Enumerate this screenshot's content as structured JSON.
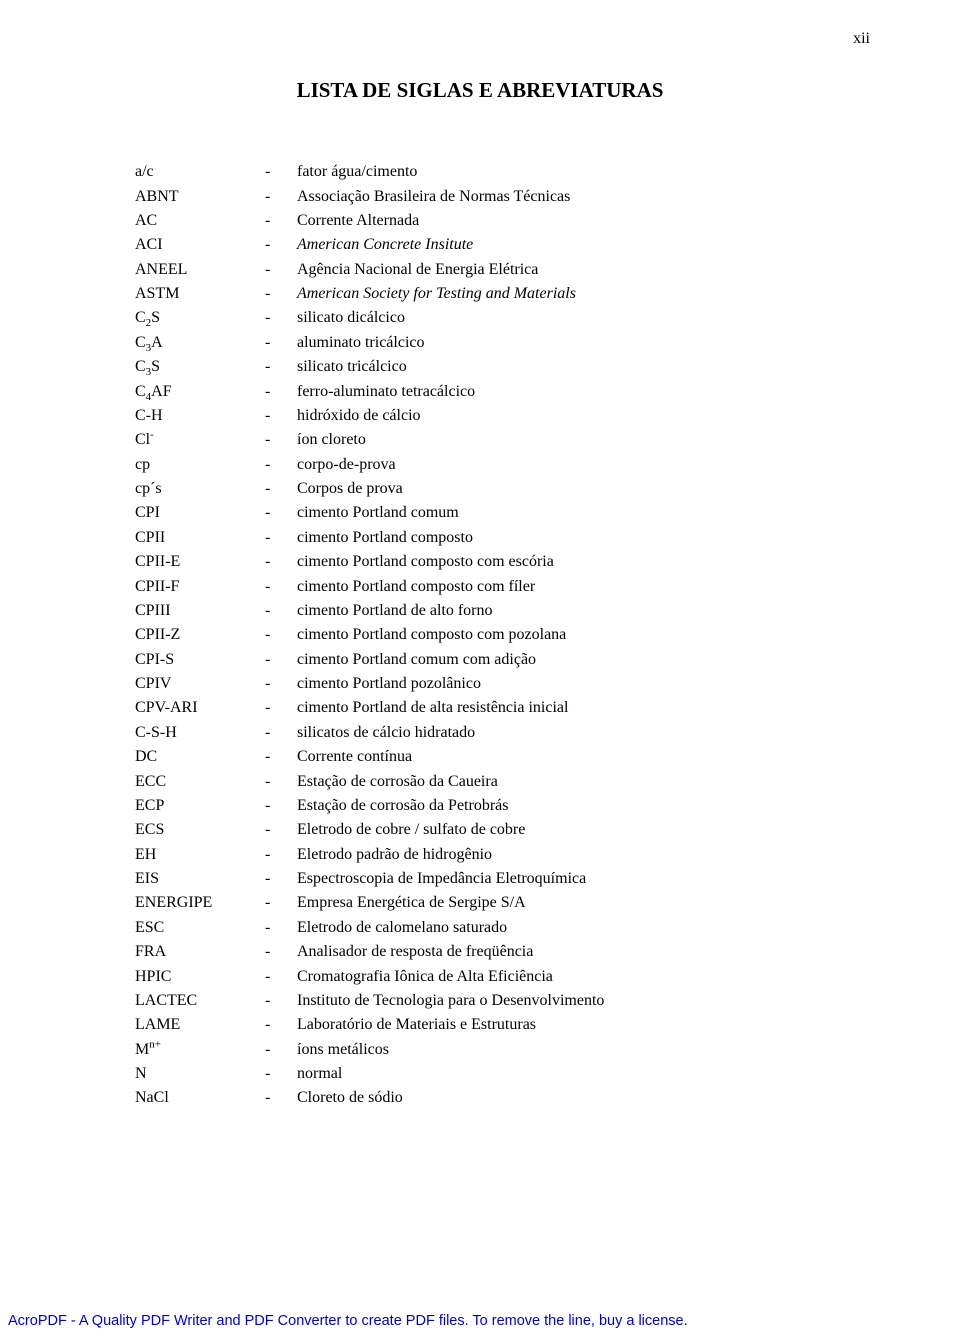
{
  "page_number": "xii",
  "title": "LISTA DE SIGLAS E ABREVIATURAS",
  "footer": "AcroPDF - A Quality PDF Writer and PDF Converter to create PDF files. To remove the line, buy a license.",
  "rows": [
    {
      "abbr_html": "a/c",
      "desc": "fator água/cimento"
    },
    {
      "abbr_html": "ABNT",
      "desc": "Associação Brasileira de Normas Técnicas"
    },
    {
      "abbr_html": "AC",
      "desc": "Corrente Alternada"
    },
    {
      "abbr_html": "ACI",
      "desc_html": "<span class=\"italic\">American Concrete Insitute</span>"
    },
    {
      "abbr_html": "ANEEL",
      "desc": "Agência Nacional de Energia Elétrica"
    },
    {
      "abbr_html": "ASTM",
      "desc_html": "<span class=\"italic\">American Society for Testing and Materials</span>"
    },
    {
      "abbr_html": "C<sub>2</sub>S",
      "desc": "silicato dicálcico"
    },
    {
      "abbr_html": "C<sub>3</sub>A",
      "desc": "aluminato tricálcico"
    },
    {
      "abbr_html": "C<sub>3</sub>S",
      "desc": "silicato tricálcico"
    },
    {
      "abbr_html": "C<sub>4</sub>AF",
      "desc": "ferro-aluminato tetracálcico"
    },
    {
      "abbr_html": "C-H",
      "desc": "hidróxido de cálcio"
    },
    {
      "abbr_html": "Cl<sup>-</sup>",
      "desc": "íon cloreto"
    },
    {
      "abbr_html": "cp",
      "desc": "corpo-de-prova"
    },
    {
      "abbr_html": "cp´s",
      "desc": "Corpos de prova"
    },
    {
      "abbr_html": "CPI",
      "desc": "cimento Portland comum"
    },
    {
      "abbr_html": "CPII",
      "desc": "cimento Portland composto"
    },
    {
      "abbr_html": "CPII-E",
      "desc": "cimento Portland composto com escória"
    },
    {
      "abbr_html": "CPII-F",
      "desc": "cimento Portland composto com fíler"
    },
    {
      "abbr_html": "CPIII",
      "desc": "cimento Portland de alto forno"
    },
    {
      "abbr_html": "CPII-Z",
      "desc": "cimento Portland composto com pozolana"
    },
    {
      "abbr_html": "CPI-S",
      "desc": "cimento Portland comum com adição"
    },
    {
      "abbr_html": "CPIV",
      "desc": "cimento Portland pozolânico"
    },
    {
      "abbr_html": "CPV-ARI",
      "desc": "cimento Portland de alta resistência inicial"
    },
    {
      "abbr_html": "C-S-H",
      "desc": "silicatos de cálcio hidratado"
    },
    {
      "abbr_html": "DC",
      "desc": "Corrente contínua"
    },
    {
      "abbr_html": "ECC",
      "desc": "Estação de corrosão da Caueira"
    },
    {
      "abbr_html": "ECP",
      "desc": "Estação de corrosão da Petrobrás"
    },
    {
      "abbr_html": "ECS",
      "desc": "Eletrodo de cobre / sulfato de cobre"
    },
    {
      "abbr_html": "EH",
      "desc": "Eletrodo padrão de hidrogênio"
    },
    {
      "abbr_html": "EIS",
      "desc": "Espectroscopia de Impedância Eletroquímica"
    },
    {
      "abbr_html": "ENERGIPE",
      "desc": "Empresa Energética de Sergipe S/A"
    },
    {
      "abbr_html": "ESC",
      "desc": "Eletrodo de calomelano saturado"
    },
    {
      "abbr_html": "FRA",
      "desc": "Analisador de resposta de freqüência"
    },
    {
      "abbr_html": "HPIC",
      "desc": "Cromatografia Iônica de Alta Eficiência"
    },
    {
      "abbr_html": "LACTEC",
      "desc": "Instituto de Tecnologia para o Desenvolvimento"
    },
    {
      "abbr_html": "LAME",
      "desc": "Laboratório de Materiais e Estruturas"
    },
    {
      "abbr_html": "M<sup>n+</sup>",
      "desc": "íons metálicos"
    },
    {
      "abbr_html": "N",
      "desc": "normal"
    },
    {
      "abbr_html": "NaCl",
      "desc": "Cloreto de sódio"
    }
  ]
}
